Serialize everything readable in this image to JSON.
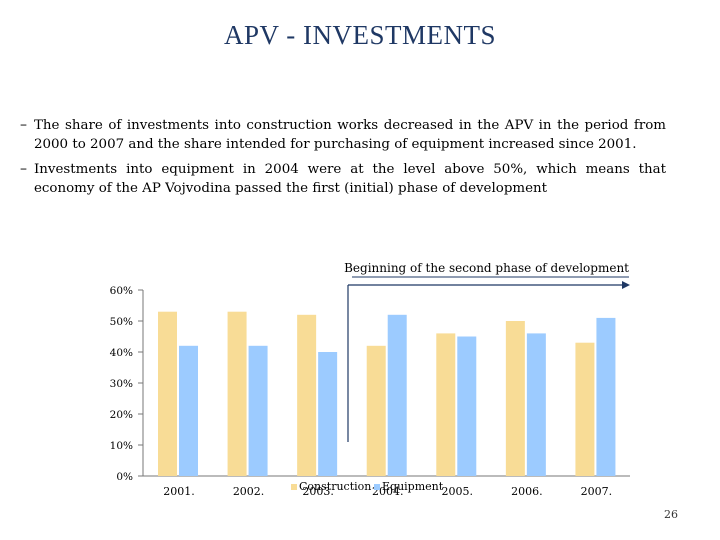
{
  "slide": {
    "title": "APV - INVESTMENTS",
    "bullets": [
      "The share of investments into construction works decreased in the APV in the period from 2000 to 2007 and the share intended for purchasing of equipment increased since 2001.",
      "Investments into equipment in 2004 were at the level above 50%, which means that economy of the AP Vojvodina passed the first (initial) phase of development"
    ],
    "bullet_marker": "–",
    "page_number": "26"
  },
  "chart_data": {
    "type": "bar",
    "title": "",
    "annotation": "Beginning of the second phase of development",
    "categories": [
      "2001.",
      "2002.",
      "2003.",
      "2004.",
      "2005.",
      "2006.",
      "2007."
    ],
    "series": [
      {
        "name": "Construction",
        "color": "#f8dc96",
        "values": [
          53,
          53,
          52,
          42,
          46,
          50,
          43
        ]
      },
      {
        "name": "Equipment",
        "color": "#9ccbff",
        "values": [
          42,
          42,
          40,
          52,
          45,
          46,
          51
        ]
      }
    ],
    "y_ticks": [
      "0%",
      "10%",
      "20%",
      "30%",
      "40%",
      "50%",
      "60%"
    ],
    "ylim": [
      0,
      60
    ],
    "legend_placement": "bottom-center, overlapping x-axis labels",
    "grid": false
  }
}
